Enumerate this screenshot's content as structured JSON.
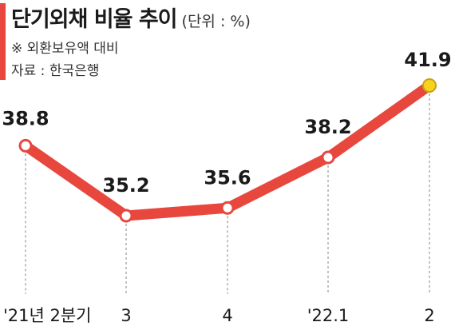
{
  "header": {
    "title": "단기외채 비율 추이",
    "unit": "(단위 : %)",
    "note": "※ 외환보유액 대비",
    "source": "자료 : 한국은행"
  },
  "colors": {
    "accent": "#e8473e",
    "line": "#e8473e",
    "marker_fill": "#ffffff",
    "highlight_marker": "#f7d21e",
    "guide": "#999999"
  },
  "chart_data": {
    "type": "line",
    "title": "단기외채 비율 추이",
    "ylabel": "",
    "xlabel": "",
    "categories": [
      "'21년 2분기",
      "3",
      "4",
      "'22.1",
      "2"
    ],
    "series": [
      {
        "values": [
          38.8,
          35.2,
          35.6,
          38.2,
          41.9
        ]
      }
    ],
    "ylim": [
      33,
      43
    ],
    "grid": false,
    "highlight_index": 4
  }
}
